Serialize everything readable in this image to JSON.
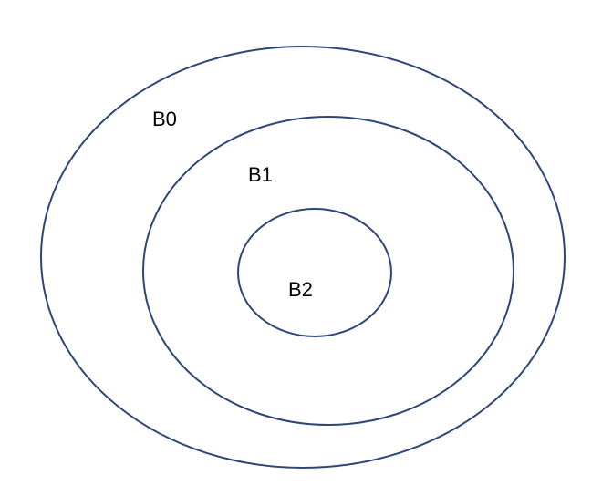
{
  "diagram": {
    "type": "nested-ellipses",
    "stroke_color": "#2e4677",
    "labels": {
      "outer": "B0",
      "middle": "B1",
      "inner": "B2"
    }
  }
}
